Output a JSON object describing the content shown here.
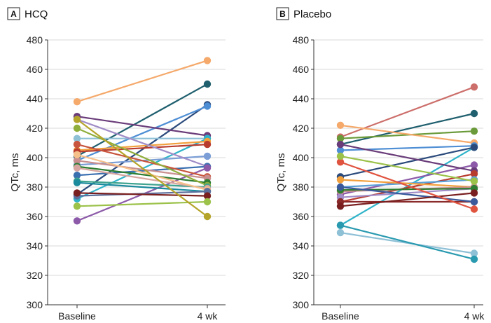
{
  "chart_data": [
    {
      "type": "line",
      "panel_letter": "A",
      "title": "HCQ",
      "ylabel": "QTc, ms",
      "xlabel": "",
      "categories": [
        "Baseline",
        "4 wk"
      ],
      "ylim": [
        300,
        480
      ],
      "yticks": [
        300,
        320,
        340,
        360,
        380,
        400,
        420,
        440,
        460,
        480
      ],
      "grid": "horizontal",
      "series": [
        {
          "color": "#f5a96b",
          "values": [
            438,
            466
          ]
        },
        {
          "color": "#1f5f6e",
          "values": [
            401,
            450
          ]
        },
        {
          "color": "#2b4a7c",
          "values": [
            375,
            436
          ]
        },
        {
          "color": "#4e8ed4",
          "values": [
            398,
            435
          ]
        },
        {
          "color": "#6a3d7a",
          "values": [
            428,
            415
          ]
        },
        {
          "color": "#8ec0d6",
          "values": [
            413,
            413
          ]
        },
        {
          "color": "#2fb3c9",
          "values": [
            372,
            413
          ]
        },
        {
          "color": "#f2a03c",
          "values": [
            405,
            411
          ]
        },
        {
          "color": "#b83c2e",
          "values": [
            404,
            409
          ]
        },
        {
          "color": "#7b9ed6",
          "values": [
            395,
            401
          ]
        },
        {
          "color": "#a08cc7",
          "values": [
            426,
            394
          ]
        },
        {
          "color": "#3a6fb0",
          "values": [
            388,
            394
          ]
        },
        {
          "color": "#8c5aa8",
          "values": [
            357,
            393
          ]
        },
        {
          "color": "#c8553d",
          "values": [
            409,
            387
          ]
        },
        {
          "color": "#c98f8f",
          "values": [
            398,
            386
          ]
        },
        {
          "color": "#2e7d32",
          "values": [
            394,
            383
          ]
        },
        {
          "color": "#8fae3b",
          "values": [
            420,
            381
          ]
        },
        {
          "color": "#3ea38f",
          "values": [
            384,
            380
          ]
        },
        {
          "color": "#d7a6a0",
          "values": [
            393,
            379
          ]
        },
        {
          "color": "#f6c08a",
          "values": [
            402,
            378
          ]
        },
        {
          "color": "#1b8a9c",
          "values": [
            383,
            377
          ]
        },
        {
          "color": "#5c6f9c",
          "values": [
            374,
            377
          ]
        },
        {
          "color": "#7a1f1f",
          "values": [
            376,
            374
          ]
        },
        {
          "color": "#9cc24a",
          "values": [
            367,
            370
          ]
        },
        {
          "color": "#b5a42a",
          "values": [
            426,
            360
          ]
        }
      ]
    },
    {
      "type": "line",
      "panel_letter": "B",
      "title": "Placebo",
      "ylabel": "QTc, ms",
      "xlabel": "",
      "categories": [
        "Baseline",
        "4 wk"
      ],
      "ylim": [
        300,
        480
      ],
      "yticks": [
        300,
        320,
        340,
        360,
        380,
        400,
        420,
        440,
        460,
        480
      ],
      "grid": "horizontal",
      "series": [
        {
          "color": "#cc6e6a",
          "values": [
            414,
            448
          ]
        },
        {
          "color": "#1f5f6e",
          "values": [
            409,
            430
          ]
        },
        {
          "color": "#6a9a3a",
          "values": [
            413,
            418
          ]
        },
        {
          "color": "#f5a96b",
          "values": [
            422,
            410
          ]
        },
        {
          "color": "#4e8ed4",
          "values": [
            405,
            408
          ]
        },
        {
          "color": "#2fb3c9",
          "values": [
            354,
            407
          ]
        },
        {
          "color": "#2b4a7c",
          "values": [
            387,
            407
          ]
        },
        {
          "color": "#8c5aa8",
          "values": [
            375,
            395
          ]
        },
        {
          "color": "#6a3d7a",
          "values": [
            409,
            391
          ]
        },
        {
          "color": "#b83c2e",
          "values": [
            370,
            389
          ]
        },
        {
          "color": "#5aa0d8",
          "values": [
            380,
            385
          ]
        },
        {
          "color": "#f2a03c",
          "values": [
            385,
            380
          ]
        },
        {
          "color": "#c98f8f",
          "values": [
            377,
            380
          ]
        },
        {
          "color": "#a08cc7",
          "values": [
            373,
            379
          ]
        },
        {
          "color": "#2e7d32",
          "values": [
            378,
            379
          ]
        },
        {
          "color": "#8b2a2a",
          "values": [
            370,
            370
          ]
        },
        {
          "color": "#3a5a9c",
          "values": [
            380,
            370
          ]
        },
        {
          "color": "#7a1f1f",
          "values": [
            367,
            376
          ]
        },
        {
          "color": "#e0533f",
          "values": [
            397,
            365
          ]
        },
        {
          "color": "#9cc24a",
          "values": [
            401,
            384
          ]
        },
        {
          "color": "#8ec0d6",
          "values": [
            349,
            335
          ]
        },
        {
          "color": "#2a9ab0",
          "values": [
            354,
            331
          ]
        }
      ]
    }
  ]
}
